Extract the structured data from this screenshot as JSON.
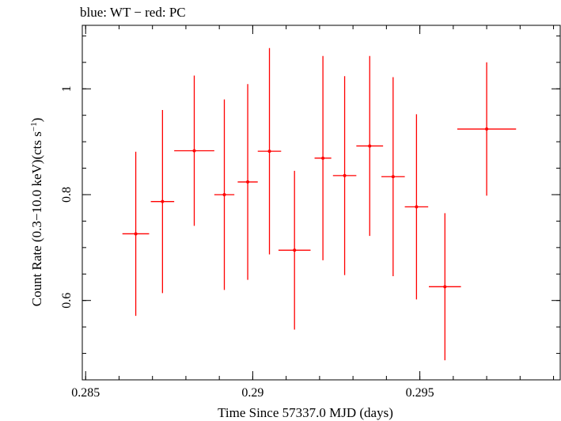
{
  "chart_data": {
    "type": "scatter",
    "title": "blue: WT − red: PC",
    "xlabel": "Time Since 57337.0 MJD (days)",
    "ylabel_main": "Count Rate (0.3−10.0 keV)(cts s",
    "ylabel_sup": "−1",
    "ylabel_end": ")",
    "xlim": [
      0.2849,
      0.2992
    ],
    "ylim": [
      0.45,
      1.12
    ],
    "x_ticks": [
      {
        "value": 0.285,
        "label": "0.285"
      },
      {
        "value": 0.29,
        "label": "0.29"
      },
      {
        "value": 0.295,
        "label": "0.295"
      }
    ],
    "x_minor_step": 0.001,
    "y_ticks": [
      {
        "value": 0.6,
        "label": "0.6"
      },
      {
        "value": 0.8,
        "label": "0.8"
      },
      {
        "value": 1.0,
        "label": "1"
      }
    ],
    "y_minor_step": 0.05,
    "grid": false,
    "series": [
      {
        "color": "#ff0000",
        "points": [
          {
            "x": 0.2865,
            "xerr": 0.0004,
            "y": 0.726,
            "yerr": 0.155
          },
          {
            "x": 0.2873,
            "xerr": 0.00035,
            "y": 0.787,
            "yerr": 0.173
          },
          {
            "x": 0.28825,
            "xerr": 0.0006,
            "y": 0.883,
            "yerr": 0.142
          },
          {
            "x": 0.28915,
            "xerr": 0.0003,
            "y": 0.8,
            "yerr": 0.18
          },
          {
            "x": 0.28985,
            "xerr": 0.0003,
            "y": 0.824,
            "yerr": 0.185
          },
          {
            "x": 0.2905,
            "xerr": 0.00035,
            "y": 0.882,
            "yerr": 0.195
          },
          {
            "x": 0.29125,
            "xerr": 0.00048,
            "y": 0.695,
            "yerr": 0.15
          },
          {
            "x": 0.2921,
            "xerr": 0.00025,
            "y": 0.869,
            "yerr": 0.193
          },
          {
            "x": 0.29275,
            "xerr": 0.00035,
            "y": 0.836,
            "yerr": 0.188
          },
          {
            "x": 0.2935,
            "xerr": 0.0004,
            "y": 0.892,
            "yerr": 0.17
          },
          {
            "x": 0.2942,
            "xerr": 0.00035,
            "y": 0.834,
            "yerr": 0.188
          },
          {
            "x": 0.2949,
            "xerr": 0.00035,
            "y": 0.777,
            "yerr": 0.175
          },
          {
            "x": 0.29575,
            "xerr": 0.00048,
            "y": 0.626,
            "yerr": 0.139
          },
          {
            "x": 0.297,
            "xerr": 0.00088,
            "y": 0.924,
            "yerr": 0.126
          }
        ]
      }
    ]
  }
}
